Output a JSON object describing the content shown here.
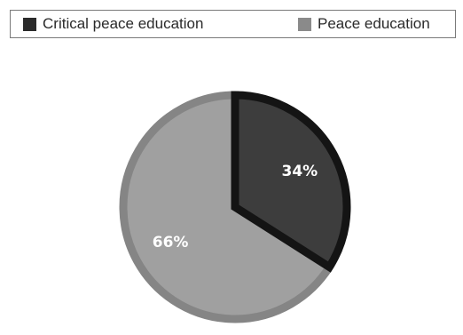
{
  "chart_data": {
    "type": "pie",
    "categories": [
      "Critical peace education",
      "Peace education"
    ],
    "values": [
      34,
      66
    ],
    "value_labels": [
      "34%",
      "66%"
    ],
    "colors": [
      "#3d3d3d",
      "#a0a0a0"
    ],
    "slice_outline_colors": [
      "#141414",
      "#858585"
    ],
    "legend_position": "top"
  },
  "legend": {
    "items": [
      {
        "label": "Critical peace education",
        "color": "#2b2b2b"
      },
      {
        "label": "Peace education",
        "color": "#8a8a8a"
      }
    ]
  }
}
